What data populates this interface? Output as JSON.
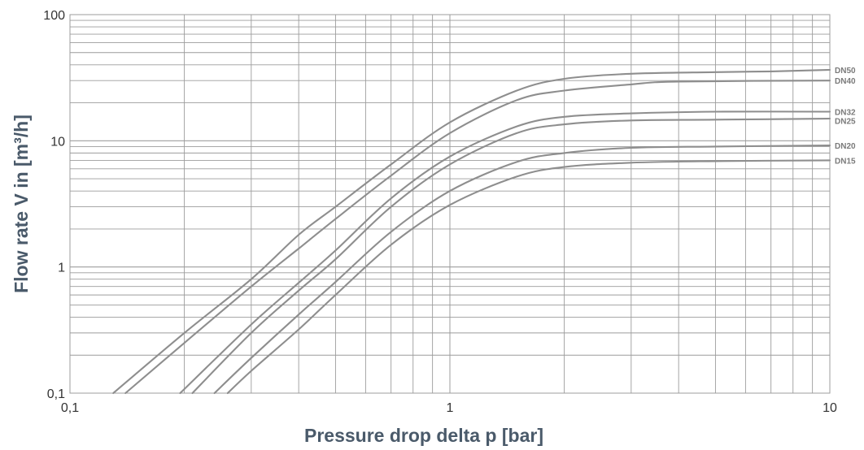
{
  "chart_data": {
    "type": "line",
    "title": "",
    "xlabel": "Pressure drop delta p [bar]",
    "ylabel": "Flow rate V in [m³/h]",
    "xscale": "log",
    "yscale": "log",
    "xlim": [
      0.1,
      10
    ],
    "ylim": [
      0.1,
      100
    ],
    "grid": true,
    "x_ticks": [
      0.1,
      1,
      10
    ],
    "x_tick_labels": [
      "0,1",
      "1",
      "10"
    ],
    "y_ticks": [
      0.1,
      1,
      10,
      100
    ],
    "y_tick_labels": [
      "0,1",
      "1",
      "10",
      "100"
    ],
    "series": [
      {
        "name": "DN50",
        "points": [
          [
            0.13,
            0.1
          ],
          [
            0.2,
            0.3
          ],
          [
            0.3,
            0.8
          ],
          [
            0.4,
            1.8
          ],
          [
            0.5,
            3.0
          ],
          [
            0.7,
            6.5
          ],
          [
            1.0,
            14
          ],
          [
            1.5,
            25
          ],
          [
            2,
            31
          ],
          [
            3,
            34
          ],
          [
            5,
            35
          ],
          [
            7,
            35.5
          ],
          [
            10,
            36.5
          ]
        ]
      },
      {
        "name": "DN40",
        "points": [
          [
            0.14,
            0.1
          ],
          [
            0.2,
            0.25
          ],
          [
            0.3,
            0.7
          ],
          [
            0.4,
            1.4
          ],
          [
            0.5,
            2.4
          ],
          [
            0.7,
            5.3
          ],
          [
            1.0,
            11.5
          ],
          [
            1.5,
            21
          ],
          [
            2,
            25
          ],
          [
            3,
            28
          ],
          [
            4,
            29.5
          ],
          [
            10,
            30
          ]
        ]
      },
      {
        "name": "DN32",
        "points": [
          [
            0.195,
            0.1
          ],
          [
            0.3,
            0.35
          ],
          [
            0.4,
            0.75
          ],
          [
            0.5,
            1.35
          ],
          [
            0.7,
            3.5
          ],
          [
            1.0,
            7.5
          ],
          [
            1.5,
            13
          ],
          [
            2,
            15.5
          ],
          [
            3,
            16.5
          ],
          [
            5,
            17
          ],
          [
            10,
            17
          ]
        ]
      },
      {
        "name": "DN25",
        "points": [
          [
            0.21,
            0.1
          ],
          [
            0.3,
            0.3
          ],
          [
            0.4,
            0.65
          ],
          [
            0.5,
            1.15
          ],
          [
            0.7,
            3.0
          ],
          [
            1.0,
            6.5
          ],
          [
            1.5,
            11.5
          ],
          [
            2,
            13.5
          ],
          [
            3,
            14.5
          ],
          [
            5,
            14.7
          ],
          [
            10,
            15
          ]
        ]
      },
      {
        "name": "DN20",
        "points": [
          [
            0.24,
            0.1
          ],
          [
            0.3,
            0.19
          ],
          [
            0.4,
            0.42
          ],
          [
            0.5,
            0.76
          ],
          [
            0.7,
            1.9
          ],
          [
            1.0,
            4.0
          ],
          [
            1.5,
            6.8
          ],
          [
            2,
            8.0
          ],
          [
            3,
            8.8
          ],
          [
            5,
            9.0
          ],
          [
            10,
            9.2
          ]
        ]
      },
      {
        "name": "DN15",
        "points": [
          [
            0.26,
            0.1
          ],
          [
            0.3,
            0.15
          ],
          [
            0.4,
            0.32
          ],
          [
            0.5,
            0.6
          ],
          [
            0.7,
            1.5
          ],
          [
            1.0,
            3.1
          ],
          [
            1.5,
            5.2
          ],
          [
            2,
            6.2
          ],
          [
            3,
            6.7
          ],
          [
            5,
            6.9
          ],
          [
            10,
            7.0
          ]
        ]
      }
    ]
  }
}
